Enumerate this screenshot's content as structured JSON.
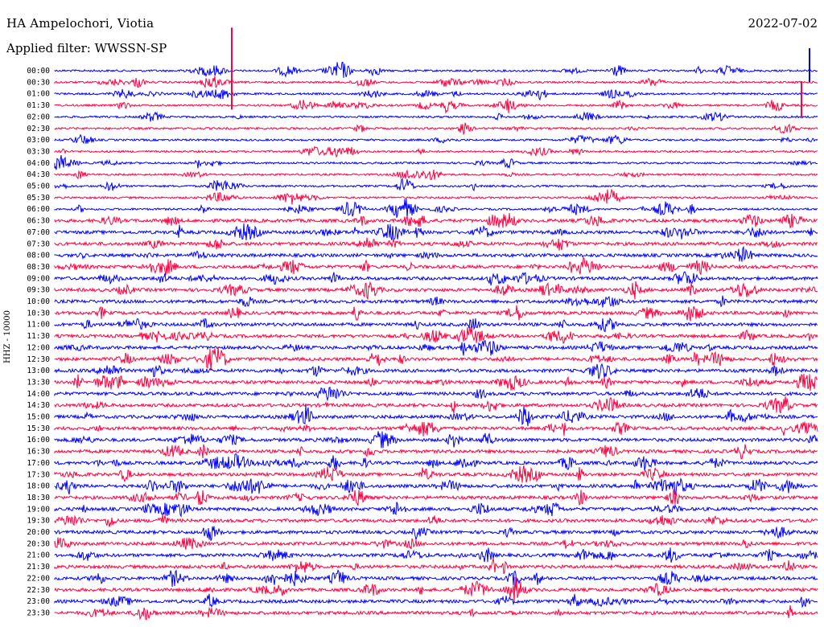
{
  "header": {
    "station": "HA Ampelochori, Viotia",
    "filter": "Applied filter: WWSSN-SP",
    "date": "2022-07-02"
  },
  "chart_data": {
    "type": "line",
    "ylabel": "HHZ - 10000",
    "row_labels": [
      "00:00",
      "00:30",
      "01:00",
      "01:30",
      "02:00",
      "02:30",
      "03:00",
      "03:30",
      "04:00",
      "04:30",
      "05:00",
      "05:30",
      "06:00",
      "06:30",
      "07:00",
      "07:30",
      "08:00",
      "08:30",
      "09:00",
      "09:30",
      "10:00",
      "10:30",
      "11:00",
      "11:30",
      "12:00",
      "12:30",
      "13:00",
      "13:30",
      "14:00",
      "14:30",
      "15:00",
      "15:30",
      "16:00",
      "16:30",
      "17:00",
      "17:30",
      "18:00",
      "18:30",
      "19:00",
      "19:30",
      "20:00",
      "20:30",
      "21:00",
      "21:30",
      "22:00",
      "22:30",
      "23:00",
      "23:30"
    ],
    "series_colors": [
      "#0000ff",
      "#ff0040"
    ],
    "grid": false
  }
}
